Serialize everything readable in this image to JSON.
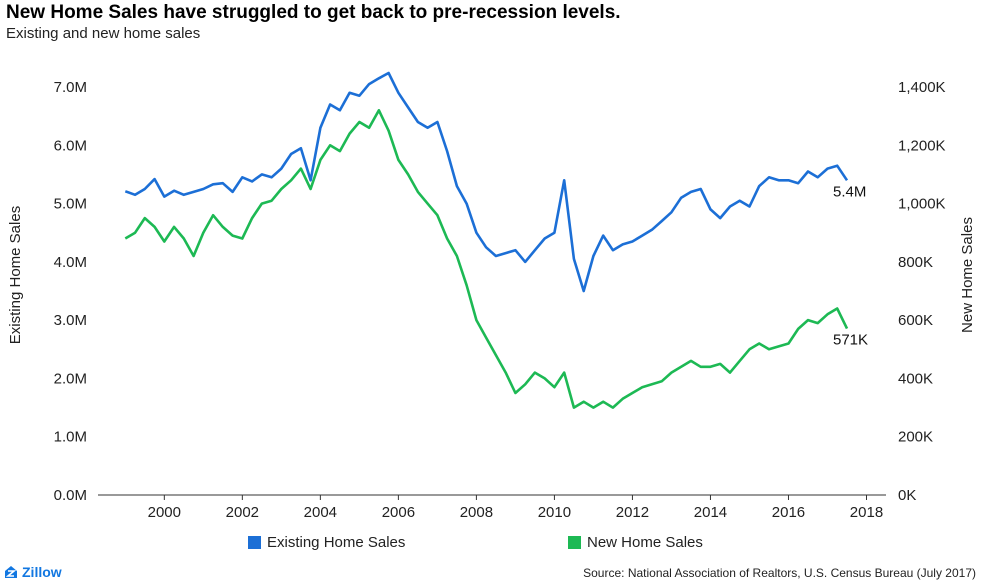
{
  "header": {
    "title": "New Home Sales have struggled to get back to pre-recession levels.",
    "subtitle": "Existing and new home sales"
  },
  "footer": {
    "brand": "Zillow",
    "source": "Source: National Association of Realtors, U.S. Census Bureau (July 2017)"
  },
  "colors": {
    "existing": "#1c6fd6",
    "new": "#1db954",
    "axis": "#333333"
  },
  "chart_data": {
    "type": "line",
    "title": "New Home Sales have struggled to get back to pre-recession levels.",
    "subtitle": "Existing and new home sales",
    "xlabel": "",
    "x_ticks": [
      "2000",
      "2002",
      "2004",
      "2006",
      "2008",
      "2010",
      "2012",
      "2014",
      "2016",
      "2018"
    ],
    "xlim": [
      1998.3,
      2018.5
    ],
    "y_left": {
      "label": "Existing Home Sales",
      "ticks": [
        "0.0M",
        "1.0M",
        "2.0M",
        "3.0M",
        "4.0M",
        "5.0M",
        "6.0M",
        "7.0M"
      ],
      "ylim": [
        0,
        7.0
      ]
    },
    "y_right": {
      "label": "New Home Sales",
      "ticks": [
        "0K",
        "200K",
        "400K",
        "600K",
        "800K",
        "1,000K",
        "1,200K",
        "1,400K"
      ],
      "ylim": [
        0,
        1400
      ]
    },
    "legend": "bottom",
    "grid": false,
    "series": [
      {
        "name": "Existing Home Sales",
        "axis": "left",
        "unit": "M",
        "end_label": "5.4M",
        "points": [
          [
            1999.0,
            5.21
          ],
          [
            1999.25,
            5.15
          ],
          [
            1999.5,
            5.25
          ],
          [
            1999.75,
            5.42
          ],
          [
            2000.0,
            5.12
          ],
          [
            2000.25,
            5.22
          ],
          [
            2000.5,
            5.15
          ],
          [
            2000.75,
            5.2
          ],
          [
            2001.0,
            5.25
          ],
          [
            2001.25,
            5.33
          ],
          [
            2001.5,
            5.35
          ],
          [
            2001.75,
            5.2
          ],
          [
            2002.0,
            5.45
          ],
          [
            2002.25,
            5.38
          ],
          [
            2002.5,
            5.5
          ],
          [
            2002.75,
            5.45
          ],
          [
            2003.0,
            5.6
          ],
          [
            2003.25,
            5.85
          ],
          [
            2003.5,
            5.95
          ],
          [
            2003.75,
            5.4
          ],
          [
            2004.0,
            6.3
          ],
          [
            2004.25,
            6.7
          ],
          [
            2004.5,
            6.6
          ],
          [
            2004.75,
            6.9
          ],
          [
            2005.0,
            6.85
          ],
          [
            2005.25,
            7.05
          ],
          [
            2005.5,
            7.15
          ],
          [
            2005.75,
            7.24
          ],
          [
            2006.0,
            6.9
          ],
          [
            2006.25,
            6.65
          ],
          [
            2006.5,
            6.4
          ],
          [
            2006.75,
            6.3
          ],
          [
            2007.0,
            6.4
          ],
          [
            2007.25,
            5.9
          ],
          [
            2007.5,
            5.3
          ],
          [
            2007.75,
            5.0
          ],
          [
            2008.0,
            4.5
          ],
          [
            2008.25,
            4.25
          ],
          [
            2008.5,
            4.1
          ],
          [
            2008.75,
            4.15
          ],
          [
            2009.0,
            4.2
          ],
          [
            2009.25,
            4.0
          ],
          [
            2009.5,
            4.2
          ],
          [
            2009.75,
            4.4
          ],
          [
            2010.0,
            4.5
          ],
          [
            2010.25,
            5.4
          ],
          [
            2010.5,
            4.05
          ],
          [
            2010.75,
            3.5
          ],
          [
            2011.0,
            4.1
          ],
          [
            2011.25,
            4.45
          ],
          [
            2011.5,
            4.2
          ],
          [
            2011.75,
            4.3
          ],
          [
            2012.0,
            4.35
          ],
          [
            2012.25,
            4.45
          ],
          [
            2012.5,
            4.55
          ],
          [
            2012.75,
            4.7
          ],
          [
            2013.0,
            4.85
          ],
          [
            2013.25,
            5.1
          ],
          [
            2013.5,
            5.2
          ],
          [
            2013.75,
            5.25
          ],
          [
            2014.0,
            4.9
          ],
          [
            2014.25,
            4.75
          ],
          [
            2014.5,
            4.95
          ],
          [
            2014.75,
            5.05
          ],
          [
            2015.0,
            4.95
          ],
          [
            2015.25,
            5.3
          ],
          [
            2015.5,
            5.45
          ],
          [
            2015.75,
            5.4
          ],
          [
            2016.0,
            5.4
          ],
          [
            2016.25,
            5.35
          ],
          [
            2016.5,
            5.55
          ],
          [
            2016.75,
            5.45
          ],
          [
            2017.0,
            5.6
          ],
          [
            2017.25,
            5.65
          ],
          [
            2017.5,
            5.4
          ]
        ]
      },
      {
        "name": "New Home Sales",
        "axis": "right",
        "unit": "K",
        "end_label": "571K",
        "points": [
          [
            1999.0,
            880
          ],
          [
            1999.25,
            900
          ],
          [
            1999.5,
            950
          ],
          [
            1999.75,
            920
          ],
          [
            2000.0,
            870
          ],
          [
            2000.25,
            920
          ],
          [
            2000.5,
            880
          ],
          [
            2000.75,
            820
          ],
          [
            2001.0,
            900
          ],
          [
            2001.25,
            960
          ],
          [
            2001.5,
            920
          ],
          [
            2001.75,
            890
          ],
          [
            2002.0,
            880
          ],
          [
            2002.25,
            950
          ],
          [
            2002.5,
            1000
          ],
          [
            2002.75,
            1010
          ],
          [
            2003.0,
            1050
          ],
          [
            2003.25,
            1080
          ],
          [
            2003.5,
            1120
          ],
          [
            2003.75,
            1050
          ],
          [
            2004.0,
            1150
          ],
          [
            2004.25,
            1200
          ],
          [
            2004.5,
            1180
          ],
          [
            2004.75,
            1240
          ],
          [
            2005.0,
            1280
          ],
          [
            2005.25,
            1260
          ],
          [
            2005.5,
            1320
          ],
          [
            2005.75,
            1250
          ],
          [
            2006.0,
            1150
          ],
          [
            2006.25,
            1100
          ],
          [
            2006.5,
            1040
          ],
          [
            2006.75,
            1000
          ],
          [
            2007.0,
            960
          ],
          [
            2007.25,
            880
          ],
          [
            2007.5,
            820
          ],
          [
            2007.75,
            720
          ],
          [
            2008.0,
            600
          ],
          [
            2008.25,
            540
          ],
          [
            2008.5,
            480
          ],
          [
            2008.75,
            420
          ],
          [
            2009.0,
            350
          ],
          [
            2009.25,
            380
          ],
          [
            2009.5,
            420
          ],
          [
            2009.75,
            400
          ],
          [
            2010.0,
            370
          ],
          [
            2010.25,
            420
          ],
          [
            2010.5,
            300
          ],
          [
            2010.75,
            320
          ],
          [
            2011.0,
            300
          ],
          [
            2011.25,
            320
          ],
          [
            2011.5,
            300
          ],
          [
            2011.75,
            330
          ],
          [
            2012.0,
            350
          ],
          [
            2012.25,
            370
          ],
          [
            2012.5,
            380
          ],
          [
            2012.75,
            390
          ],
          [
            2013.0,
            420
          ],
          [
            2013.25,
            440
          ],
          [
            2013.5,
            460
          ],
          [
            2013.75,
            440
          ],
          [
            2014.0,
            440
          ],
          [
            2014.25,
            450
          ],
          [
            2014.5,
            420
          ],
          [
            2014.75,
            460
          ],
          [
            2015.0,
            500
          ],
          [
            2015.25,
            520
          ],
          [
            2015.5,
            500
          ],
          [
            2015.75,
            510
          ],
          [
            2016.0,
            520
          ],
          [
            2016.25,
            570
          ],
          [
            2016.5,
            600
          ],
          [
            2016.75,
            590
          ],
          [
            2017.0,
            620
          ],
          [
            2017.25,
            640
          ],
          [
            2017.5,
            571
          ]
        ]
      }
    ]
  }
}
